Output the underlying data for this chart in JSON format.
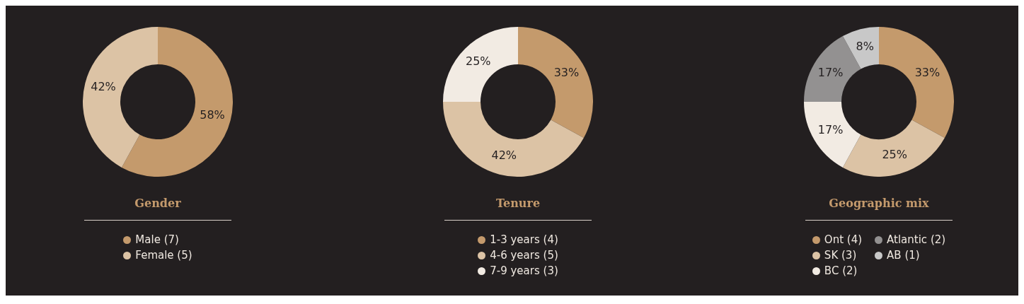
{
  "chart_data": [
    {
      "type": "donut",
      "title": "Gender",
      "categories": [
        "Male (7)",
        "Female (5)"
      ],
      "values": [
        58,
        42
      ],
      "colors": [
        "#c49a6c",
        "#dcc3a5"
      ],
      "value_labels": [
        "58%",
        "42%"
      ],
      "legend": "bottom"
    },
    {
      "type": "donut",
      "title": "Tenure",
      "categories": [
        "1-3 years (4)",
        "4-6 years (5)",
        "7-9 years (3)"
      ],
      "values": [
        33,
        42,
        25
      ],
      "colors": [
        "#c49a6c",
        "#dcc3a5",
        "#f2ebe3"
      ],
      "value_labels": [
        "33%",
        "42%",
        "25%"
      ],
      "legend": "bottom"
    },
    {
      "type": "donut",
      "title": "Geographic mix",
      "categories": [
        "Ont (4)",
        "SK (3)",
        "BC (2)",
        "Atlantic (2)",
        "AB (1)"
      ],
      "values": [
        33,
        25,
        17,
        17,
        8
      ],
      "colors": [
        "#c49a6c",
        "#dcc3a5",
        "#f2ebe3",
        "#939191",
        "#c8c8c8"
      ],
      "value_labels": [
        "33%",
        "25%",
        "17%",
        "17%",
        "8%"
      ],
      "legend": "bottom"
    }
  ]
}
